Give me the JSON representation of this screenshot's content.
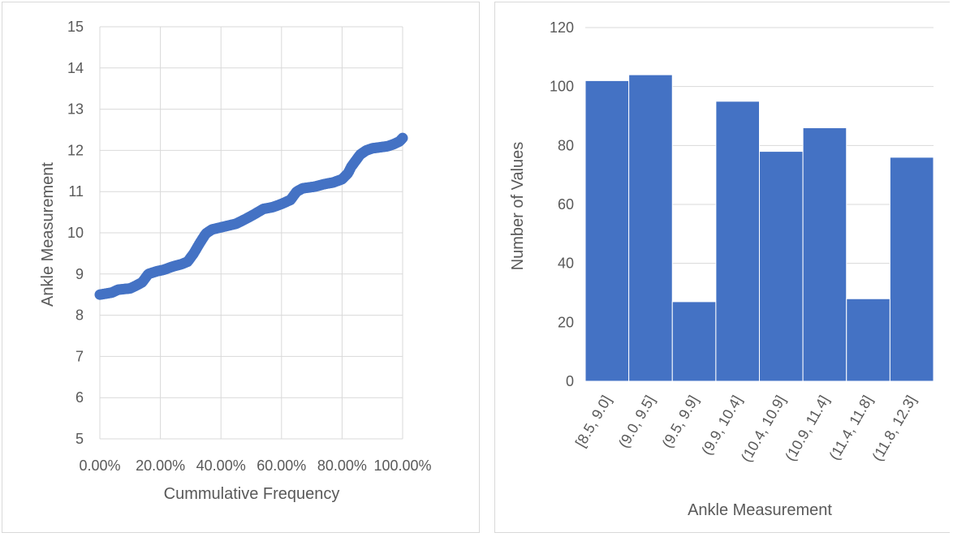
{
  "chart_data": [
    {
      "type": "scatter",
      "title": "",
      "xlabel": "Cummulative Frequency",
      "ylabel": "Ankle Measurement",
      "xlim": [
        0,
        1
      ],
      "ylim": [
        5,
        15
      ],
      "x_tick_labels": [
        "0.00%",
        "20.00%",
        "40.00%",
        "60.00%",
        "80.00%",
        "100.00%"
      ],
      "y_tick_labels": [
        "5",
        "6",
        "7",
        "8",
        "9",
        "10",
        "11",
        "12",
        "13",
        "14",
        "15"
      ],
      "grid": true,
      "marker_color": "#4472C4",
      "profile": [
        [
          0.0,
          8.5
        ],
        [
          0.04,
          8.55
        ],
        [
          0.06,
          8.62
        ],
        [
          0.1,
          8.65
        ],
        [
          0.12,
          8.72
        ],
        [
          0.14,
          8.8
        ],
        [
          0.16,
          9.0
        ],
        [
          0.19,
          9.07
        ],
        [
          0.21,
          9.1
        ],
        [
          0.24,
          9.18
        ],
        [
          0.27,
          9.24
        ],
        [
          0.29,
          9.3
        ],
        [
          0.31,
          9.5
        ],
        [
          0.33,
          9.75
        ],
        [
          0.35,
          9.98
        ],
        [
          0.37,
          10.08
        ],
        [
          0.41,
          10.15
        ],
        [
          0.45,
          10.22
        ],
        [
          0.48,
          10.33
        ],
        [
          0.51,
          10.45
        ],
        [
          0.54,
          10.58
        ],
        [
          0.57,
          10.62
        ],
        [
          0.6,
          10.7
        ],
        [
          0.63,
          10.8
        ],
        [
          0.65,
          11.0
        ],
        [
          0.67,
          11.08
        ],
        [
          0.71,
          11.12
        ],
        [
          0.74,
          11.18
        ],
        [
          0.77,
          11.22
        ],
        [
          0.8,
          11.3
        ],
        [
          0.82,
          11.45
        ],
        [
          0.83,
          11.6
        ],
        [
          0.84,
          11.7
        ],
        [
          0.86,
          11.9
        ],
        [
          0.88,
          12.0
        ],
        [
          0.9,
          12.05
        ],
        [
          0.95,
          12.1
        ],
        [
          0.97,
          12.15
        ],
        [
          0.99,
          12.22
        ],
        [
          1.0,
          12.3
        ]
      ]
    },
    {
      "type": "bar",
      "title": "",
      "xlabel": "Ankle Measurement",
      "ylabel": "Number of Values",
      "categories": [
        "[8.5, 9.0]",
        "(9.0, 9.5]",
        "(9.5, 9.9]",
        "(9.9, 10.4]",
        "(10.4, 10.9]",
        "(10.9, 11.4]",
        "(11.4, 11.8]",
        "(11.8, 12.3]"
      ],
      "values": [
        102,
        104,
        27,
        95,
        78,
        86,
        28,
        76
      ],
      "ylim": [
        0,
        120
      ],
      "y_tick_labels": [
        "0",
        "20",
        "40",
        "60",
        "80",
        "100",
        "120"
      ],
      "grid": true,
      "bar_color": "#4472C4"
    }
  ]
}
